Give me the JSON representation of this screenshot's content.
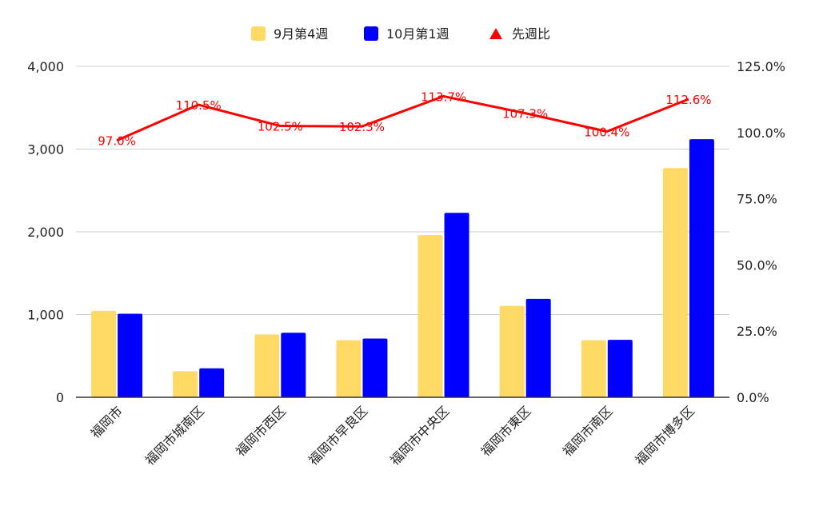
{
  "chart_data": {
    "type": "bar",
    "title": "",
    "categories": [
      "福岡市",
      "福岡市城南区",
      "福岡市西区",
      "福岡市早良区",
      "福岡市中央区",
      "福岡市東区",
      "福岡市南区",
      "福岡市博多区"
    ],
    "series": [
      {
        "name": "9月第4週",
        "type": "bar",
        "axis": "left",
        "color": "#FFD966",
        "values": [
          1045,
          315,
          760,
          690,
          1960,
          1105,
          690,
          2770
        ]
      },
      {
        "name": "10月第1週",
        "type": "bar",
        "axis": "left",
        "color": "#0000FF",
        "values": [
          1010,
          350,
          780,
          710,
          2230,
          1190,
          695,
          3120
        ]
      },
      {
        "name": "先週比",
        "type": "line",
        "axis": "right",
        "color": "#FF0000",
        "values": [
          97.0,
          110.5,
          102.5,
          102.3,
          113.7,
          107.3,
          100.4,
          112.6
        ],
        "labels": [
          "97.0%",
          "110.5%",
          "102.5%",
          "102.3%",
          "113.7%",
          "107.3%",
          "100.4%",
          "112.6%"
        ]
      }
    ],
    "y_left": {
      "ylim": [
        0,
        4000
      ],
      "ticks": [
        0,
        1000,
        2000,
        3000,
        4000
      ],
      "tick_labels": [
        "0",
        "1,000",
        "2,000",
        "3,000",
        "4,000"
      ]
    },
    "y_right": {
      "ylim": [
        0,
        125
      ],
      "ticks": [
        0,
        25,
        50,
        75,
        100,
        125
      ],
      "tick_labels": [
        "0.0%",
        "25.0%",
        "50.0%",
        "75.0%",
        "100.0%",
        "125.0%"
      ]
    },
    "grid": true,
    "legend": {
      "position": "top"
    },
    "xlabel": "",
    "ylabel": ""
  }
}
